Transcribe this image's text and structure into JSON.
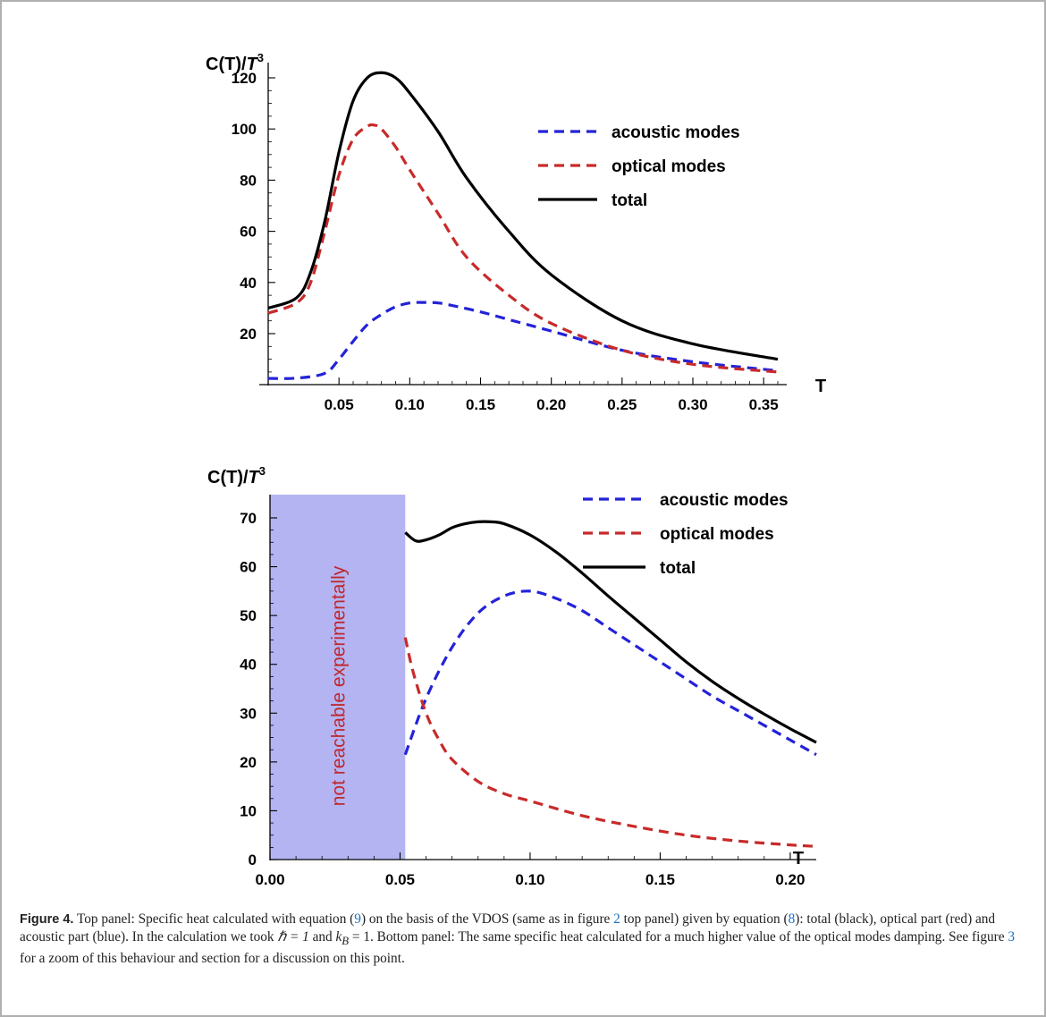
{
  "chart_data": [
    {
      "type": "line",
      "panel": "top",
      "ylabel": "C(T)/T^3",
      "xlabel": "T",
      "xlim": [
        0.0,
        0.36
      ],
      "ylim": [
        0,
        125
      ],
      "xticks": [
        "0.05",
        "0.10",
        "0.15",
        "0.20",
        "0.25",
        "0.30",
        "0.35"
      ],
      "yticks": [
        "20",
        "40",
        "60",
        "80",
        "100",
        "120"
      ],
      "legend_position": "top-right",
      "series": [
        {
          "name": "acoustic modes",
          "color": "#2323d8",
          "style": "dashed",
          "x": [
            0.0,
            0.02,
            0.04,
            0.05,
            0.06,
            0.07,
            0.08,
            0.09,
            0.1,
            0.11,
            0.12,
            0.13,
            0.15,
            0.17,
            0.2,
            0.25,
            0.3,
            0.36
          ],
          "y": [
            2.5,
            2.6,
            4.5,
            10,
            17,
            23.5,
            27.5,
            30.5,
            32,
            32.2,
            32,
            31,
            28.5,
            25.5,
            21,
            13.5,
            9,
            5.5
          ]
        },
        {
          "name": "optical modes",
          "color": "#c82a2a",
          "style": "dashed",
          "x": [
            0.0,
            0.02,
            0.03,
            0.04,
            0.05,
            0.06,
            0.07,
            0.075,
            0.08,
            0.09,
            0.1,
            0.12,
            0.14,
            0.17,
            0.2,
            0.25,
            0.3,
            0.36
          ],
          "y": [
            28,
            32,
            40,
            60,
            82,
            96,
            101,
            101.5,
            100,
            93,
            84,
            67,
            50,
            35,
            24,
            13.5,
            8,
            5
          ]
        },
        {
          "name": "total",
          "color": "#000000",
          "style": "solid",
          "x": [
            0.0,
            0.02,
            0.03,
            0.04,
            0.05,
            0.06,
            0.07,
            0.08,
            0.09,
            0.1,
            0.12,
            0.14,
            0.17,
            0.2,
            0.25,
            0.3,
            0.36
          ],
          "y": [
            30,
            34,
            44,
            64,
            91,
            111,
            120,
            122,
            120,
            114,
            99,
            81,
            60,
            43,
            25,
            16,
            10
          ]
        }
      ]
    },
    {
      "type": "line",
      "panel": "bottom",
      "ylabel": "C(T)/T^3",
      "xlabel": "T",
      "xlim": [
        0.0,
        0.21
      ],
      "ylim": [
        0,
        75
      ],
      "xticks": [
        "0.00",
        "0.05",
        "0.10",
        "0.15",
        "0.20"
      ],
      "yticks": [
        "0",
        "10",
        "20",
        "30",
        "40",
        "50",
        "60",
        "70"
      ],
      "legend_position": "top-right",
      "shaded_region": {
        "x": [
          0.0,
          0.052
        ],
        "label": "not reachable experimentally",
        "fill": "#b4b4f2"
      },
      "series": [
        {
          "name": "acoustic modes",
          "color": "#2323d8",
          "style": "dashed",
          "x": [
            0.052,
            0.06,
            0.07,
            0.08,
            0.09,
            0.1,
            0.11,
            0.12,
            0.13,
            0.14,
            0.15,
            0.16,
            0.17,
            0.18,
            0.19,
            0.2,
            0.21
          ],
          "y": [
            21.5,
            33,
            43.5,
            50.5,
            54,
            55,
            53.5,
            51,
            47.5,
            44,
            40.5,
            37,
            33.5,
            30.5,
            27.5,
            24.5,
            21.5
          ]
        },
        {
          "name": "optical modes",
          "color": "#c82a2a",
          "style": "dashed",
          "x": [
            0.052,
            0.055,
            0.06,
            0.065,
            0.07,
            0.08,
            0.09,
            0.1,
            0.12,
            0.14,
            0.16,
            0.18,
            0.2,
            0.21
          ],
          "y": [
            45.5,
            38.5,
            30,
            24.5,
            20.5,
            16,
            13.5,
            12,
            9,
            6.8,
            5,
            3.8,
            3,
            2.7
          ]
        },
        {
          "name": "total",
          "color": "#000000",
          "style": "solid",
          "x": [
            0.052,
            0.056,
            0.06,
            0.065,
            0.07,
            0.075,
            0.08,
            0.085,
            0.09,
            0.1,
            0.11,
            0.12,
            0.13,
            0.14,
            0.15,
            0.16,
            0.17,
            0.18,
            0.19,
            0.2,
            0.21
          ],
          "y": [
            67,
            65.3,
            65.5,
            66.5,
            68,
            68.8,
            69.2,
            69.2,
            68.8,
            66.5,
            63,
            58.7,
            54,
            49.5,
            45,
            40.5,
            36.5,
            33,
            29.8,
            26.8,
            24
          ]
        }
      ]
    }
  ],
  "caption": {
    "label": "Figure 4.",
    "text_1": "Top panel: Specific heat calculated with equation (",
    "ref_eq9": "9",
    "text_2": ") on the basis of the VDOS (same as in figure ",
    "ref_fig2": "2",
    "text_3": " top panel) given by equation (",
    "ref_eq8": "8",
    "text_4": "): total (black), optical part (red) and acoustic part (blue). In the calculation we took ",
    "hbar_eq": "ℏ = 1",
    "text_5": " and ",
    "kb_eq": "k",
    "kb_sub": "B",
    "kb_rest": " = 1",
    "text_6": ". Bottom panel: The same specific heat calculated for a much higher value of the optical modes damping. See figure ",
    "ref_fig3": "3",
    "text_7": " for a zoom of this behaviour and section for a discussion on this point."
  }
}
